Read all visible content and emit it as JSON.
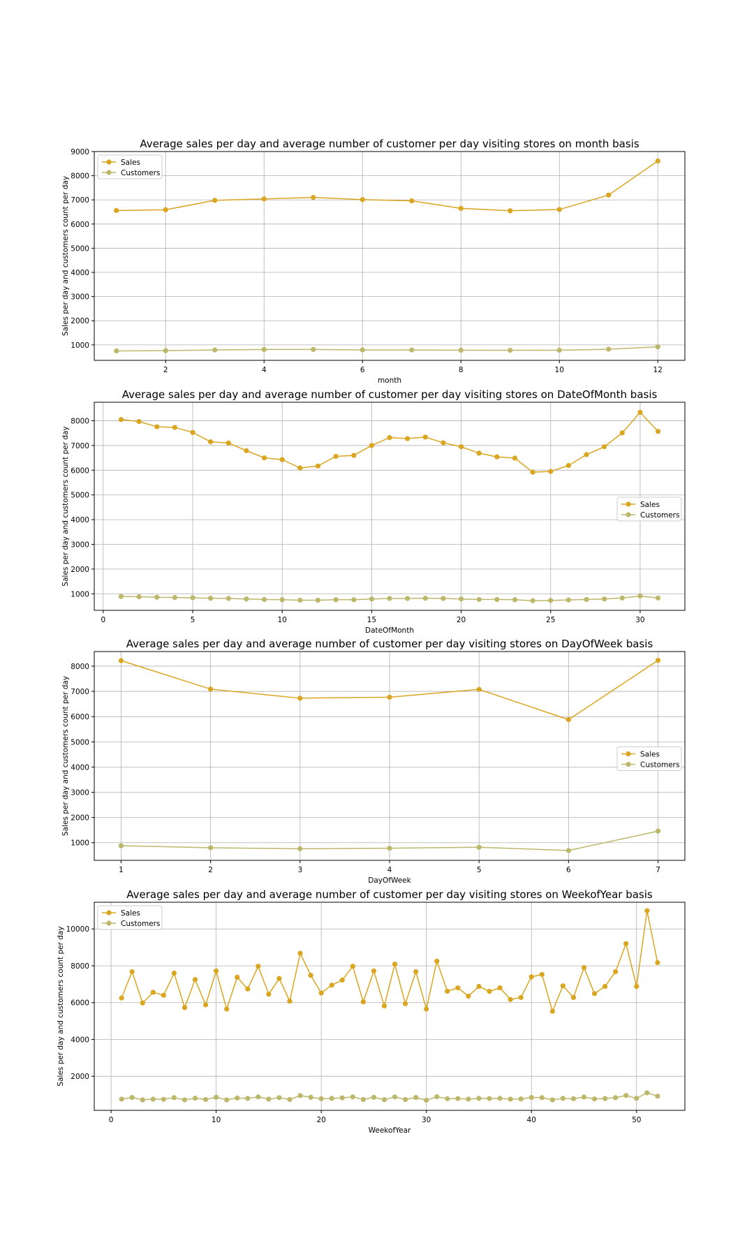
{
  "colors": {
    "sales": "#DAA520",
    "customers": "#BDB76B",
    "grid": "#b0b0b0",
    "axis": "#000000"
  },
  "chart_data": [
    {
      "type": "line",
      "title": "Average sales per day and average number of customer per day visiting stores on month basis",
      "xlabel": "month",
      "ylabel": "Sales per day and customers count per day",
      "xlim": [
        0.55,
        12.55
      ],
      "ylim": [
        360,
        9000
      ],
      "xticks": [
        2,
        4,
        6,
        8,
        10,
        12
      ],
      "yticks": [
        1000,
        2000,
        3000,
        4000,
        5000,
        6000,
        7000,
        8000,
        9000
      ],
      "legend_position": "upper-left",
      "grid": true,
      "x": [
        1,
        2,
        3,
        4,
        5,
        6,
        7,
        8,
        9,
        10,
        11,
        12
      ],
      "series": [
        {
          "name": "Sales",
          "values": [
            6560,
            6590,
            6980,
            7040,
            7100,
            7010,
            6960,
            6650,
            6550,
            6600,
            7200,
            8610
          ]
        },
        {
          "name": "Customers",
          "values": [
            750,
            760,
            790,
            810,
            810,
            790,
            790,
            780,
            775,
            780,
            820,
            920
          ]
        }
      ]
    },
    {
      "type": "line",
      "title": "Average sales per day and average number of customer per day visiting stores on DateOfMonth basis",
      "xlabel": "DateOfMonth",
      "ylabel": "Sales per day and customers count per day",
      "xlim": [
        -0.5,
        32.5
      ],
      "ylim": [
        330,
        8750
      ],
      "xticks": [
        0,
        5,
        10,
        15,
        20,
        25,
        30
      ],
      "yticks": [
        1000,
        2000,
        3000,
        4000,
        5000,
        6000,
        7000,
        8000
      ],
      "legend_position": "center-right",
      "grid": true,
      "x": [
        1,
        2,
        3,
        4,
        5,
        6,
        7,
        8,
        9,
        10,
        11,
        12,
        13,
        14,
        15,
        16,
        17,
        18,
        19,
        20,
        21,
        22,
        23,
        24,
        25,
        26,
        27,
        28,
        29,
        30,
        31
      ],
      "series": [
        {
          "name": "Sales",
          "values": [
            8050,
            7970,
            7760,
            7730,
            7530,
            7150,
            7100,
            6790,
            6500,
            6430,
            6090,
            6170,
            6560,
            6600,
            7000,
            7320,
            7280,
            7340,
            7110,
            6950,
            6690,
            6540,
            6490,
            5920,
            5950,
            6190,
            6630,
            6950,
            7510,
            8340,
            7570
          ]
        },
        {
          "name": "Customers",
          "values": [
            890,
            880,
            860,
            850,
            840,
            820,
            810,
            790,
            770,
            760,
            740,
            740,
            760,
            760,
            790,
            810,
            810,
            820,
            810,
            790,
            770,
            770,
            760,
            720,
            730,
            750,
            770,
            790,
            830,
            910,
            830
          ]
        }
      ]
    },
    {
      "type": "line",
      "title": "Average sales per day and average number of customer per day visiting stores on DayOfWeek basis",
      "xlabel": "DayOfWeek",
      "ylabel": "Sales per day and customers count per day",
      "xlim": [
        0.7,
        7.3
      ],
      "ylim": [
        300,
        8580
      ],
      "xticks": [
        1,
        2,
        3,
        4,
        5,
        6,
        7
      ],
      "yticks": [
        1000,
        2000,
        3000,
        4000,
        5000,
        6000,
        7000,
        8000
      ],
      "legend_position": "center-right",
      "grid": true,
      "x": [
        1,
        2,
        3,
        4,
        5,
        6,
        7
      ],
      "series": [
        {
          "name": "Sales",
          "values": [
            8220,
            7090,
            6730,
            6770,
            7080,
            5880,
            8230
          ]
        },
        {
          "name": "Customers",
          "values": [
            880,
            800,
            760,
            780,
            820,
            690,
            1460
          ]
        }
      ]
    },
    {
      "type": "line",
      "title": "Average sales per day and average number of customer per day visiting stores on WeekofYear basis",
      "xlabel": "WeekofYear",
      "ylabel": "Sales per day and customers count per day",
      "xlim": [
        -1.6,
        54.6
      ],
      "ylim": [
        150,
        11450
      ],
      "xticks": [
        0,
        10,
        20,
        30,
        40,
        50
      ],
      "yticks": [
        2000,
        4000,
        6000,
        8000,
        10000
      ],
      "legend_position": "upper-left",
      "grid": true,
      "x": [
        1,
        2,
        3,
        4,
        5,
        6,
        7,
        8,
        9,
        10,
        11,
        12,
        13,
        14,
        15,
        16,
        17,
        18,
        19,
        20,
        21,
        22,
        23,
        24,
        25,
        26,
        27,
        28,
        29,
        30,
        31,
        32,
        33,
        34,
        35,
        36,
        37,
        38,
        39,
        40,
        41,
        42,
        43,
        44,
        45,
        46,
        47,
        48,
        49,
        50,
        51,
        52
      ],
      "series": [
        {
          "name": "Sales",
          "values": [
            6250,
            7680,
            5980,
            6560,
            6400,
            7600,
            5730,
            7250,
            5880,
            7720,
            5650,
            7380,
            6740,
            7970,
            6460,
            7310,
            6080,
            8680,
            7480,
            6520,
            6950,
            7230,
            7970,
            6040,
            7720,
            5820,
            8090,
            5940,
            7680,
            5650,
            8250,
            6620,
            6800,
            6350,
            6880,
            6610,
            6800,
            6170,
            6280,
            7400,
            7530,
            5530,
            6910,
            6280,
            7900,
            6490,
            6880,
            7680,
            9200,
            6880,
            10990,
            8170
          ]
        },
        {
          "name": "Customers",
          "values": [
            760,
            850,
            720,
            760,
            750,
            840,
            720,
            810,
            740,
            860,
            720,
            820,
            800,
            880,
            760,
            840,
            740,
            950,
            860,
            780,
            800,
            830,
            880,
            740,
            860,
            730,
            880,
            740,
            850,
            700,
            890,
            780,
            790,
            760,
            800,
            790,
            800,
            760,
            770,
            850,
            840,
            720,
            800,
            780,
            870,
            770,
            790,
            840,
            960,
            800,
            1100,
            920
          ]
        }
      ]
    }
  ]
}
